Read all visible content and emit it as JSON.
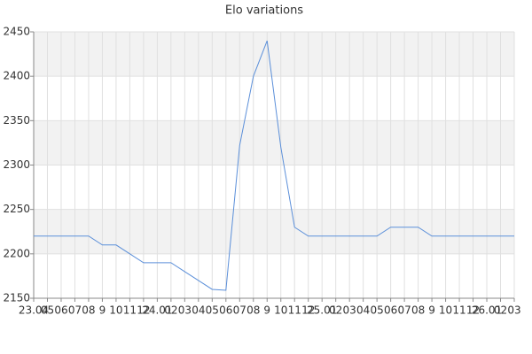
{
  "chart_data": {
    "type": "line",
    "title": "Elo variations",
    "categories": [
      "23.04",
      "05",
      "06",
      "07",
      "08",
      "9",
      "10",
      "11",
      "12",
      "24.01",
      "02",
      "03",
      "04",
      "05",
      "06",
      "07",
      "08",
      "9",
      "10",
      "11",
      "12",
      "25.01",
      "02",
      "03",
      "04",
      "05",
      "06",
      "07",
      "08",
      "9",
      "10",
      "11",
      "12",
      "26.01",
      "02",
      "03"
    ],
    "series": [
      {
        "name": "Elo",
        "color": "#5b8fd9",
        "values": [
          2220,
          2220,
          2220,
          2220,
          2220,
          2210,
          2210,
          2200,
          2190,
          2190,
          2190,
          2180,
          2170,
          2160,
          2159,
          2322,
          2400,
          2440,
          2320,
          2230,
          2220,
          2220,
          2220,
          2220,
          2220,
          2220,
          2230,
          2230,
          2230,
          2220,
          2220,
          2220,
          2220,
          2220,
          2220,
          2220
        ]
      }
    ],
    "ylim": [
      2150,
      2450
    ],
    "yticks": [
      2150,
      2200,
      2250,
      2300,
      2350,
      2400,
      2450
    ],
    "grid": true
  }
}
